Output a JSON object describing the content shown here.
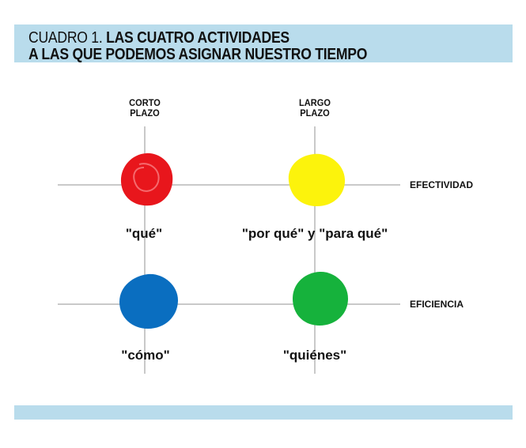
{
  "header": {
    "prefix": "CUADRO 1.",
    "title_line1": "LAS CUATRO ACTIVIDADES",
    "title_line2": "A LAS QUE PODEMOS ASIGNAR NUESTRO TIEMPO"
  },
  "columns": {
    "short_term": [
      "CORTO",
      "PLAZO"
    ],
    "long_term": [
      "LARGO",
      "PLAZO"
    ]
  },
  "rows": {
    "effectiveness": "EFECTIVIDAD",
    "efficiency": "EFICIENCIA"
  },
  "quadrants": {
    "que": "\"qué\"",
    "por_que": "\"por qué\" y \"para qué\"",
    "como": "\"cómo\"",
    "quienes": "\"quiénes\""
  },
  "colors": {
    "band": "#b9dcec",
    "red": "#e8161c",
    "yellow": "#fcf30c",
    "blue": "#0a6ec0",
    "green": "#16b23c"
  }
}
